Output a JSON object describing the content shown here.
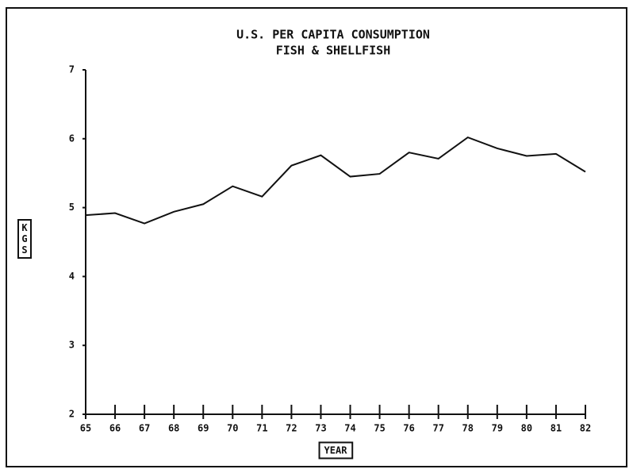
{
  "chart_data": {
    "type": "line",
    "title": "U.S. PER CAPITA CONSUMPTION",
    "subtitle": "FISH & SHELLFISH",
    "x_label": "YEAR",
    "y_label": "KGS",
    "categories": [
      "65",
      "66",
      "67",
      "68",
      "69",
      "70",
      "71",
      "72",
      "73",
      "74",
      "75",
      "76",
      "77",
      "78",
      "79",
      "80",
      "81",
      "82"
    ],
    "series": [
      {
        "name": "Consumption",
        "color": "#111111",
        "values": [
          4.89,
          4.92,
          4.77,
          4.94,
          5.05,
          5.31,
          5.16,
          5.61,
          5.76,
          5.45,
          5.49,
          5.8,
          5.71,
          6.02,
          5.86,
          5.75,
          5.78,
          5.52
        ]
      }
    ],
    "ylim": [
      2,
      7
    ],
    "yticks": [
      2,
      3,
      4,
      5,
      6,
      7
    ],
    "grid": false
  }
}
